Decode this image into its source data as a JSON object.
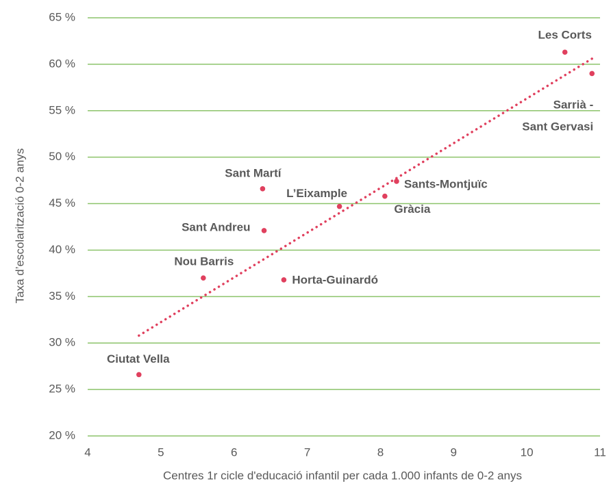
{
  "chart_data": {
    "type": "scatter",
    "x_label": "Centres 1r cicle d'educació infantil per cada 1.000 infants de 0-2 anys",
    "y_label": "Taxa d’escolarització 0-2 anys",
    "point_labels": [
      "Les Corts",
      "Sarrià -\nSant Gervasi",
      "Sant Martí",
      "Sants-Montjuïc",
      "Gràcia",
      "L’Eixample",
      "Sant Andreu",
      "Nou Barris",
      "Horta-Guinardó",
      "Ciutat Vella"
    ],
    "x": [
      10.52,
      10.89,
      6.39,
      8.22,
      8.06,
      7.44,
      6.41,
      5.58,
      6.68,
      4.7
    ],
    "y": [
      61.3,
      59.0,
      46.6,
      47.4,
      45.8,
      44.7,
      42.1,
      37.0,
      36.8,
      26.6
    ],
    "color": "#e0405e",
    "trendline": {
      "x": [
        4.7,
        10.89
      ],
      "y": [
        30.8,
        60.6
      ],
      "color": "#e0405e"
    },
    "xlim": [
      4,
      11
    ],
    "ylim": [
      20,
      65
    ],
    "xticks": [
      4,
      5,
      6,
      7,
      8,
      9,
      10,
      11
    ],
    "yticks": [
      {
        "value": 20,
        "label": "20 %"
      },
      {
        "value": 25,
        "label": "25 %"
      },
      {
        "value": 30,
        "label": "30 %"
      },
      {
        "value": 35,
        "label": "35 %"
      },
      {
        "value": 40,
        "label": "40 %"
      },
      {
        "value": 45,
        "label": "45 %"
      },
      {
        "value": 50,
        "label": "50 %"
      },
      {
        "value": 55,
        "label": "55 %"
      },
      {
        "value": 60,
        "label": "60 %"
      },
      {
        "value": 65,
        "label": "65 %"
      }
    ],
    "grid": true,
    "grid_color": "#8cc36a"
  }
}
